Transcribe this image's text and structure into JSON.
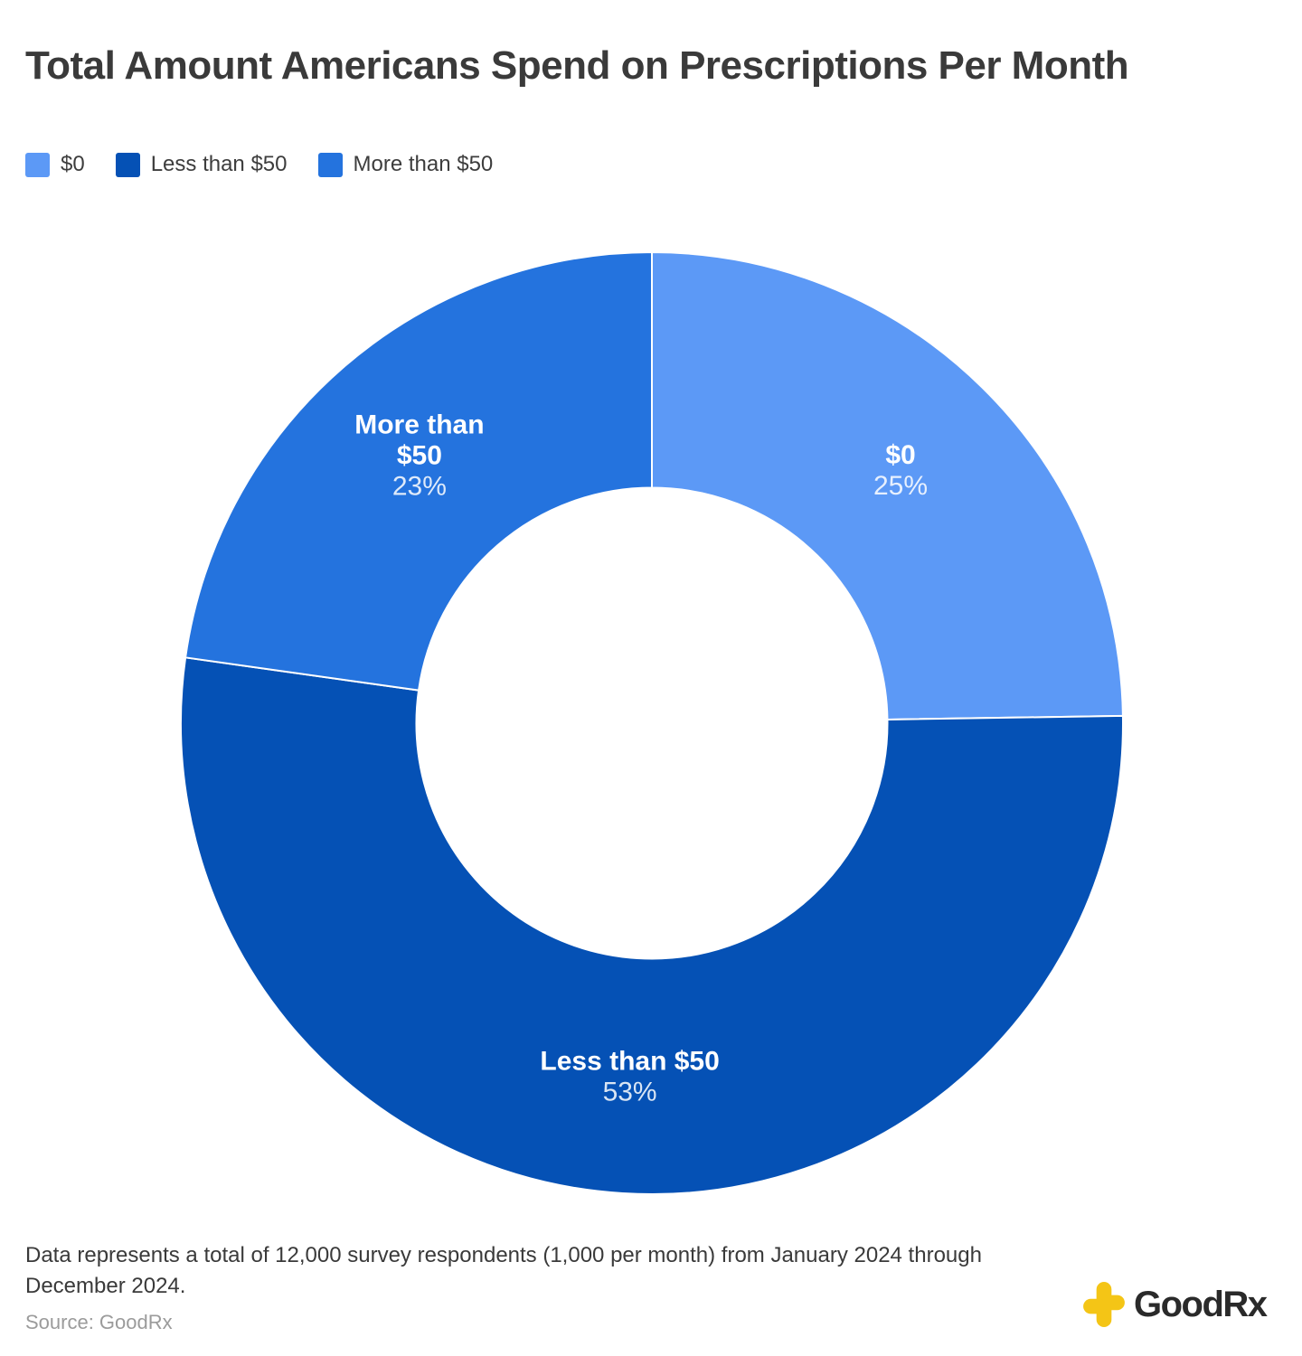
{
  "title": "Total Amount Americans Spend on Prescriptions Per Month",
  "legend": {
    "items": [
      {
        "label": "$0",
        "color": "#5C99F6"
      },
      {
        "label": "Less than $50",
        "color": "#0551B5"
      },
      {
        "label": "More than $50",
        "color": "#2473DE"
      }
    ]
  },
  "chart_data": {
    "type": "pie",
    "subtype": "donut",
    "title": "Total Amount Americans Spend on Prescriptions Per Month",
    "categories": [
      "$0",
      "Less than $50",
      "More than $50"
    ],
    "values": [
      25,
      53,
      23
    ],
    "unit": "percent",
    "colors": [
      "#5C99F6",
      "#0551B5",
      "#2473DE"
    ],
    "slice_labels": [
      {
        "lines": [
          "$0"
        ],
        "pct": "25%"
      },
      {
        "lines": [
          "Less than $50"
        ],
        "pct": "53%"
      },
      {
        "lines": [
          "More than",
          "$50"
        ],
        "pct": "23%"
      }
    ],
    "start_angle_deg": 0,
    "direction": "clockwise",
    "inner_radius_ratio": 0.5,
    "legend_position": "top-left",
    "legend_entries": [
      "$0",
      "Less than $50",
      "More than $50"
    ]
  },
  "footnote": "Data represents a total of 12,000 survey respondents (1,000 per month) from January 2024 through December 2024.",
  "source": "Source: GoodRx",
  "logo": {
    "brand": "GoodRx",
    "icon": "plus-icon",
    "icon_color": "#F4C516",
    "text_color": "#2A2A2A"
  }
}
